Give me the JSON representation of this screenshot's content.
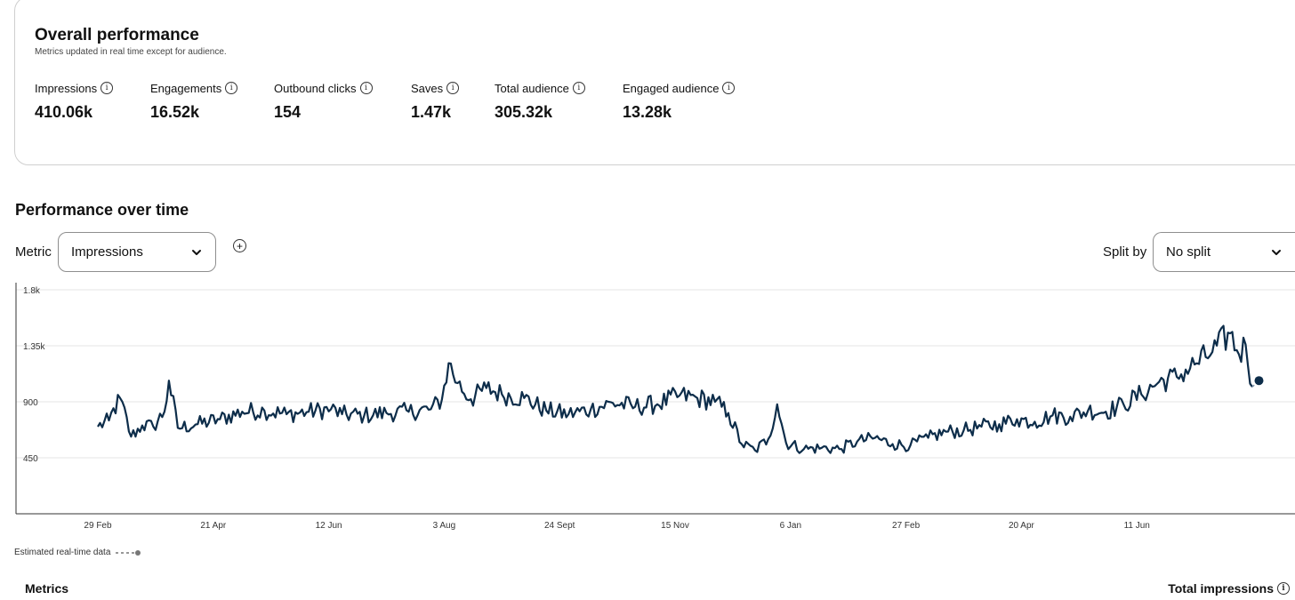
{
  "overall": {
    "title": "Overall performance",
    "subtitle": "Metrics updated in real time except for audience.",
    "stats": [
      {
        "label": "Impressions",
        "value": "410.06k"
      },
      {
        "label": "Engagements",
        "value": "16.52k"
      },
      {
        "label": "Outbound clicks",
        "value": "154"
      },
      {
        "label": "Saves",
        "value": "1.47k"
      },
      {
        "label": "Total audience",
        "value": "305.32k"
      },
      {
        "label": "Engaged audience",
        "value": "13.28k"
      }
    ]
  },
  "performance": {
    "title": "Performance over time",
    "metric_label": "Metric",
    "metric_selected": "Impressions",
    "split_label": "Split by",
    "split_selected": "No split"
  },
  "legend": {
    "estimated": "Estimated real-time data"
  },
  "footer": {
    "metrics_heading": "Metrics",
    "total_heading": "Total impressions"
  },
  "colors": {
    "line": "#0d2d4a",
    "grid": "#e6e6e6",
    "estimated": "#7a8fa6"
  },
  "chart_data": {
    "type": "line",
    "title": "Performance over time",
    "ylabel": "Impressions",
    "xlabel": "",
    "ylim": [
      0,
      1800
    ],
    "yticks": [
      450,
      900,
      1350,
      1800
    ],
    "ytick_labels": [
      "450",
      "900",
      "1.35k",
      "1.8k"
    ],
    "x_tick_labels": [
      "29 Feb",
      "21 Apr",
      "12 Jun",
      "3 Aug",
      "24 Sept",
      "15 Nov",
      "6 Jan",
      "27 Feb",
      "20 Apr",
      "11 Jun"
    ],
    "x_tick_days": [
      0,
      52,
      104,
      156,
      208,
      260,
      312,
      364,
      416,
      468
    ],
    "series_anchors": [
      [
        0,
        700
      ],
      [
        5,
        750
      ],
      [
        10,
        930
      ],
      [
        15,
        620
      ],
      [
        20,
        710
      ],
      [
        25,
        700
      ],
      [
        30,
        820
      ],
      [
        32,
        1070
      ],
      [
        36,
        690
      ],
      [
        45,
        720
      ],
      [
        55,
        760
      ],
      [
        65,
        820
      ],
      [
        75,
        830
      ],
      [
        85,
        800
      ],
      [
        95,
        820
      ],
      [
        105,
        840
      ],
      [
        110,
        800
      ],
      [
        120,
        790
      ],
      [
        130,
        810
      ],
      [
        140,
        820
      ],
      [
        150,
        840
      ],
      [
        155,
        920
      ],
      [
        158,
        1210
      ],
      [
        162,
        1050
      ],
      [
        168,
        920
      ],
      [
        175,
        1010
      ],
      [
        182,
        960
      ],
      [
        192,
        930
      ],
      [
        202,
        830
      ],
      [
        212,
        800
      ],
      [
        222,
        840
      ],
      [
        232,
        890
      ],
      [
        242,
        860
      ],
      [
        252,
        880
      ],
      [
        262,
        950
      ],
      [
        270,
        930
      ],
      [
        278,
        900
      ],
      [
        284,
        810
      ],
      [
        290,
        560
      ],
      [
        296,
        510
      ],
      [
        302,
        600
      ],
      [
        306,
        880
      ],
      [
        310,
        570
      ],
      [
        318,
        520
      ],
      [
        326,
        530
      ],
      [
        334,
        520
      ],
      [
        342,
        580
      ],
      [
        350,
        610
      ],
      [
        358,
        560
      ],
      [
        366,
        550
      ],
      [
        374,
        610
      ],
      [
        382,
        660
      ],
      [
        390,
        670
      ],
      [
        398,
        700
      ],
      [
        406,
        720
      ],
      [
        414,
        760
      ],
      [
        422,
        740
      ],
      [
        430,
        790
      ],
      [
        438,
        780
      ],
      [
        446,
        830
      ],
      [
        454,
        820
      ],
      [
        462,
        880
      ],
      [
        470,
        960
      ],
      [
        478,
        1060
      ],
      [
        486,
        1100
      ],
      [
        494,
        1200
      ],
      [
        502,
        1300
      ],
      [
        510,
        1450
      ],
      [
        514,
        1280
      ],
      [
        517,
        1360
      ],
      [
        520,
        1020
      ]
    ],
    "estimated_last_value": 1070,
    "total_days": 524
  }
}
